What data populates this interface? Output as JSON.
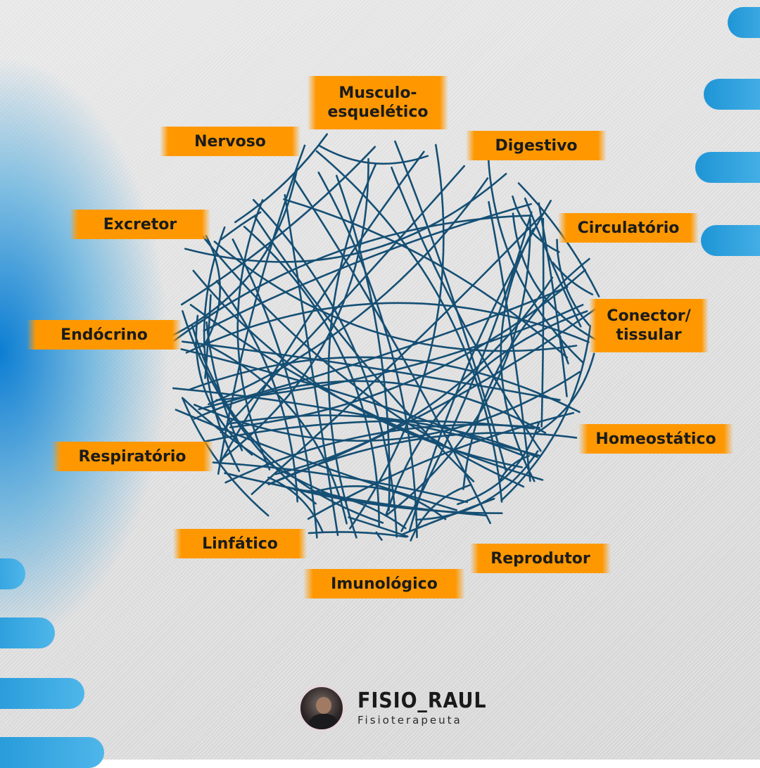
{
  "labels": [
    {
      "text": "Musculo-\nesquelético"
    },
    {
      "text": "Nervoso"
    },
    {
      "text": "Digestivo"
    },
    {
      "text": "Excretor"
    },
    {
      "text": "Circulatório"
    },
    {
      "text": "Endócrino"
    },
    {
      "text": "Conector/\ntissular"
    },
    {
      "text": "Homeostático"
    },
    {
      "text": "Respiratório"
    },
    {
      "text": "Linfático"
    },
    {
      "text": "Reprodutor"
    },
    {
      "text": "Imunológico"
    }
  ],
  "footer": {
    "name": "FISIO_RAUL",
    "role": "Fisioterapeuta"
  },
  "colors": {
    "label_bg": "#ff9800",
    "web_lines": "#154f74",
    "accent_blue": "#1f95d6"
  }
}
